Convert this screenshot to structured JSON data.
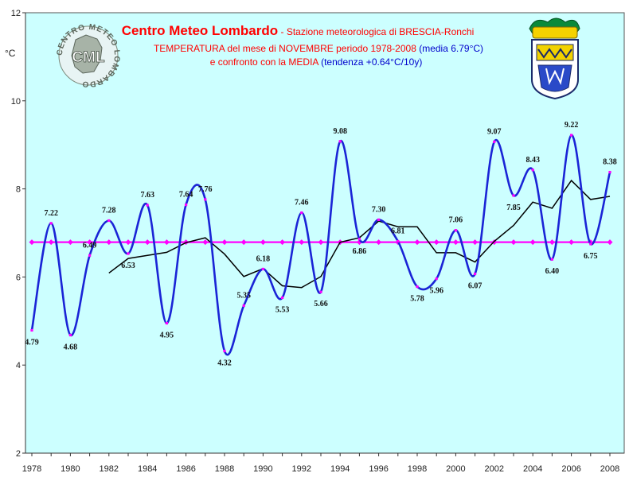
{
  "chart_data": {
    "type": "line",
    "title": "Centro Meteo Lombardo",
    "title_suffix": " - Stazione meteorologica di BRESCIA-Ronchi",
    "subtitle1": "TEMPERATURA del mese di NOVEMBRE periodo 1978-2008",
    "subtitle1_note": " (media 6.79°C)",
    "subtitle2": "e confronto con la MEDIA",
    "subtitle2_note": " (tendenza +0.64°C/10y)",
    "ylabel": "°C",
    "ylim": [
      2,
      12
    ],
    "y_ticks": [
      2,
      4,
      6,
      8,
      10,
      12
    ],
    "xlim": [
      1978,
      2008
    ],
    "x_ticks": [
      1978,
      1980,
      1982,
      1984,
      1986,
      1988,
      1990,
      1992,
      1994,
      1996,
      1998,
      2000,
      2002,
      2004,
      2006,
      2008
    ],
    "grid": false,
    "x": [
      1978,
      1979,
      1980,
      1981,
      1982,
      1983,
      1984,
      1985,
      1986,
      1987,
      1988,
      1989,
      1990,
      1991,
      1992,
      1993,
      1994,
      1995,
      1996,
      1997,
      1998,
      1999,
      2000,
      2001,
      2002,
      2003,
      2004,
      2005,
      2006,
      2007,
      2008
    ],
    "series": [
      {
        "values": [
          4.79,
          7.22,
          4.68,
          6.49,
          7.28,
          6.53,
          7.63,
          4.95,
          7.64,
          7.76,
          4.32,
          5.35,
          6.18,
          5.53,
          7.46,
          5.66,
          9.08,
          6.86,
          7.3,
          6.81,
          5.78,
          5.96,
          7.06,
          6.07,
          9.07,
          7.85,
          8.43,
          6.4,
          9.22,
          6.75,
          8.38
        ],
        "color": "#1a24d6",
        "marker_color": "#ff00ff"
      },
      {
        "values": [
          6.79,
          6.79,
          6.79,
          6.79,
          6.79,
          6.79,
          6.79,
          6.79,
          6.79,
          6.79,
          6.79,
          6.79,
          6.79,
          6.79,
          6.79,
          6.79,
          6.79,
          6.79,
          6.79,
          6.79,
          6.79,
          6.79,
          6.79,
          6.79,
          6.79,
          6.79,
          6.79,
          6.79,
          6.79,
          6.79,
          6.79
        ],
        "color": "#ff00ff"
      },
      {
        "x": [
          1982,
          1983,
          1984,
          1985,
          1986,
          1987,
          1988,
          1989,
          1990,
          1991,
          1992,
          1993,
          1994,
          1995,
          1996,
          1997,
          1998,
          1999,
          2000,
          2001,
          2002,
          2003,
          2004,
          2005,
          2006,
          2007,
          2008
        ],
        "values": [
          6.09,
          6.42,
          6.49,
          6.56,
          6.78,
          6.89,
          6.52,
          6.01,
          6.19,
          5.8,
          5.76,
          6.01,
          6.79,
          6.89,
          7.27,
          7.14,
          7.14,
          6.55,
          6.55,
          6.34,
          6.81,
          7.17,
          7.7,
          7.56,
          8.19,
          7.76,
          7.83
        ],
        "color": "#000000"
      }
    ],
    "logo_text": "CML",
    "logo_ring_text": "CENTRO METEO LOMBARDO",
    "colors": {
      "plot_background": "#ccffff",
      "title": "#ff0000",
      "subtitle": "#ff0000",
      "note": "#0000cc"
    }
  }
}
